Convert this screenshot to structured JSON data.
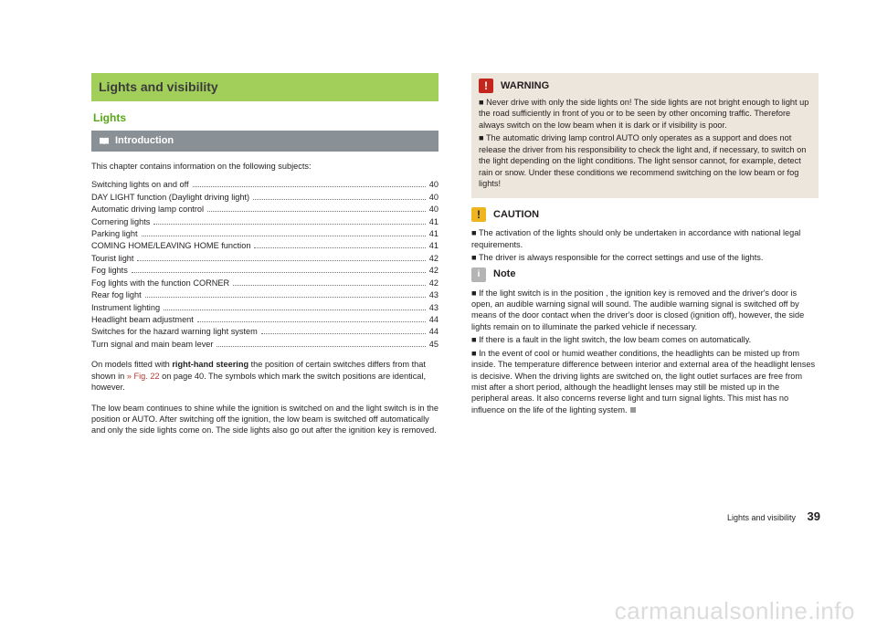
{
  "chapter_title": "Lights and visibility",
  "section_title": "Lights",
  "intro_label": "Introduction",
  "lead": "This chapter contains information on the following subjects:",
  "toc": [
    {
      "label": "Switching lights on and off",
      "page": "40"
    },
    {
      "label": "DAY LIGHT function (Daylight driving light)",
      "page": "40"
    },
    {
      "label": "Automatic driving lamp control",
      "page": "40"
    },
    {
      "label": "Cornering lights",
      "page": "41"
    },
    {
      "label": "Parking light",
      "page": "41"
    },
    {
      "label": "COMING HOME/LEAVING HOME function",
      "page": "41"
    },
    {
      "label": "Tourist light",
      "page": "42"
    },
    {
      "label": "Fog lights",
      "page": "42"
    },
    {
      "label": "Fog lights with the function CORNER",
      "page": "42"
    },
    {
      "label": "Rear fog light",
      "page": "43"
    },
    {
      "label": "Instrument lighting ",
      "page": "43"
    },
    {
      "label": "Headlight beam adjustment ",
      "page": "44"
    },
    {
      "label": "Switches for the hazard warning light system",
      "page": "44"
    },
    {
      "label": "Turn signal and main beam lever",
      "page": "45"
    }
  ],
  "para1_a": "On models fitted with ",
  "para1_bold": "right-hand steering",
  "para1_b": " the position of certain switches differs from that shown in ",
  "para1_ref": "» Fig. 22",
  "para1_c": " on page 40. The symbols which mark the switch positions are identical, however.",
  "para2": "The low beam continues to shine while the ignition is switched on and the light switch is in the position  or AUTO. After switching off the ignition, the low beam is switched off automatically and only the side lights come on. The side lights also go out after the ignition key is removed.",
  "warning_label": "WARNING",
  "warning_items": [
    "Never drive with only the side lights on! The side lights are not bright enough to light up the road sufficiently in front of you or to be seen by other oncoming traffic. Therefore always switch on the low beam when it is dark or if visibility is poor.",
    "The automatic driving lamp control AUTO only operates as a support and does not release the driver from his responsibility to check the light and, if necessary, to switch on the light depending on the light conditions. The light sensor cannot, for example, detect rain or snow. Under these conditions we recommend switching on the low beam or fog lights!"
  ],
  "caution_label": "CAUTION",
  "caution_items": [
    "The activation of the lights should only be undertaken in accordance with national legal requirements.",
    "The driver is always responsible for the correct settings and use of the lights."
  ],
  "note_label": "Note",
  "note_items": [
    "If the light switch is in the position , the ignition key is removed and the driver's door is open, an audible warning signal will sound. The audible warning signal is switched off by means of the door contact when the driver's door is closed (ignition off), however, the side lights remain on to illuminate the parked vehicle if necessary.",
    "If there is a fault in the light switch, the low beam comes on automatically.",
    "In the event of cool or humid weather conditions, the headlights can be misted up from inside. The temperature difference between interior and external area of the headlight lenses is decisive. When the driving lights are switched on, the light outlet surfaces are free from mist after a short period, although the headlight lenses may still be misted up in the peripheral areas. It also concerns reverse light and turn signal lights. This mist has no influence on the life of the lighting system."
  ],
  "footer_label": "Lights and visibility",
  "footer_page": "39",
  "watermark": "carmanualsonline.info"
}
